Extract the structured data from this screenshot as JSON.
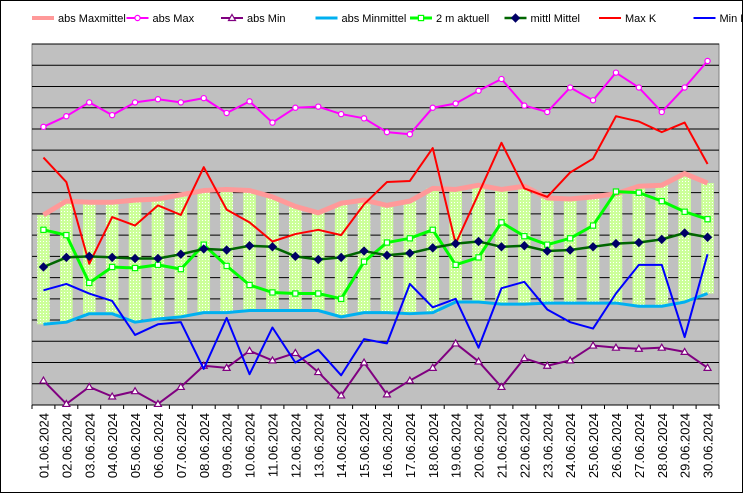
{
  "chart_data": {
    "type": "line",
    "title": "",
    "xlabel": "",
    "ylabel": "",
    "ylim": [
      0,
      34
    ],
    "y_gridlines": 17,
    "y_tick_labels_visible": false,
    "plot_background": "#c0c0c0",
    "grid": true,
    "legend_position": "top",
    "categories": [
      "01.06.2024",
      "02.06.2024",
      "03.06.2024",
      "04.06.2024",
      "05.06.2024",
      "06.06.2024",
      "07.06.2024",
      "08.06.2024",
      "09.06.2024",
      "10.06.2024",
      "11.06.2024",
      "12.06.2024",
      "13.06.2024",
      "14.06.2024",
      "15.06.2024",
      "16.06.2024",
      "17.06.2024",
      "18.06.2024",
      "19.06.2024",
      "20.06.2024",
      "21.06.2024",
      "22.06.2024",
      "23.06.2024",
      "24.06.2024",
      "25.06.2024",
      "26.06.2024",
      "27.06.2024",
      "28.06.2024",
      "29.06.2024",
      "30.06.2024"
    ],
    "series": [
      {
        "name": "abs Maxmittel",
        "color": "#ff9999",
        "width": 5,
        "marker": "none",
        "values": [
          17.9,
          19.2,
          19.1,
          19.1,
          19.3,
          19.4,
          19.8,
          20.2,
          20.3,
          20.2,
          19.6,
          18.7,
          18.1,
          19.0,
          19.3,
          18.8,
          19.2,
          20.4,
          20.3,
          20.7,
          20.3,
          20.6,
          19.5,
          19.4,
          19.6,
          19.9,
          20.6,
          20.7,
          21.8,
          20.9
        ]
      },
      {
        "name": "abs Max",
        "color": "#ff00ff",
        "width": 2,
        "marker": "circle",
        "values": [
          26.2,
          27.2,
          28.5,
          27.3,
          28.5,
          28.8,
          28.5,
          28.9,
          27.5,
          28.6,
          26.6,
          28.0,
          28.1,
          27.4,
          27.0,
          25.7,
          25.5,
          28.0,
          28.4,
          29.6,
          30.7,
          28.2,
          27.6,
          29.9,
          28.7,
          31.3,
          29.9,
          27.6,
          29.9,
          32.4
        ]
      },
      {
        "name": "abs Min",
        "color": "#800080",
        "width": 2,
        "marker": "triangle",
        "values": [
          2.3,
          0.1,
          1.7,
          0.8,
          1.3,
          0.1,
          1.7,
          3.7,
          3.5,
          5.1,
          4.2,
          4.9,
          3.1,
          0.9,
          4.0,
          1.0,
          2.3,
          3.5,
          5.8,
          4.1,
          1.7,
          4.4,
          3.7,
          4.2,
          5.6,
          5.4,
          5.3,
          5.4,
          5.0,
          3.5
        ]
      },
      {
        "name": "abs Minmittel",
        "color": "#00b0f0",
        "width": 3,
        "marker": "none",
        "values": [
          7.6,
          7.8,
          8.6,
          8.6,
          7.8,
          8.1,
          8.3,
          8.7,
          8.7,
          8.9,
          8.9,
          8.9,
          8.9,
          8.3,
          8.7,
          8.7,
          8.6,
          8.7,
          9.7,
          9.7,
          9.5,
          9.5,
          9.6,
          9.6,
          9.6,
          9.6,
          9.3,
          9.3,
          9.7,
          10.5
        ]
      },
      {
        "name": "2 m aktuell",
        "color": "#00ff00",
        "width": 3,
        "marker": "square",
        "values": [
          16.5,
          16.0,
          11.5,
          13.0,
          12.9,
          13.2,
          12.8,
          15.1,
          13.1,
          11.3,
          10.6,
          10.5,
          10.5,
          10.0,
          13.5,
          15.3,
          15.7,
          16.5,
          13.2,
          13.9,
          17.2,
          15.9,
          15.1,
          15.7,
          16.9,
          20.1,
          20.0,
          19.2,
          18.2,
          17.5
        ]
      },
      {
        "name": "mittl Mittel",
        "color": "#006600",
        "width": 2.5,
        "marker": "diamond",
        "values": [
          13.0,
          13.9,
          14.0,
          13.9,
          13.8,
          13.8,
          14.2,
          14.7,
          14.6,
          15.0,
          14.9,
          14.0,
          13.7,
          13.9,
          14.5,
          14.1,
          14.3,
          14.8,
          15.2,
          15.4,
          14.9,
          15.0,
          14.5,
          14.6,
          14.9,
          15.2,
          15.3,
          15.6,
          16.2,
          15.8
        ]
      },
      {
        "name": "Max K",
        "color": "#ff0000",
        "width": 2,
        "marker": "none",
        "values": [
          23.3,
          21.0,
          13.3,
          17.7,
          16.9,
          18.8,
          17.9,
          22.4,
          18.4,
          17.2,
          15.4,
          16.1,
          16.5,
          16.0,
          18.9,
          21.0,
          21.1,
          24.2,
          15.2,
          19.9,
          24.7,
          20.4,
          19.6,
          21.9,
          23.2,
          27.2,
          26.7,
          25.7,
          26.6,
          22.7
        ]
      },
      {
        "name": "Min K",
        "color": "#0000ff",
        "width": 2,
        "marker": "none",
        "values": [
          10.8,
          11.4,
          10.5,
          9.8,
          6.6,
          7.6,
          7.8,
          3.4,
          8.2,
          2.9,
          7.3,
          4.0,
          5.2,
          2.8,
          6.2,
          5.8,
          11.4,
          9.2,
          10.0,
          5.4,
          11.0,
          11.6,
          9.0,
          7.8,
          7.2,
          10.5,
          13.2,
          13.2,
          6.4,
          14.2
        ]
      }
    ],
    "range_band": {
      "upper_series": "abs Maxmittel",
      "lower_series": "abs Minmittel",
      "fill": "#ccff99",
      "pattern": "dotted"
    }
  }
}
